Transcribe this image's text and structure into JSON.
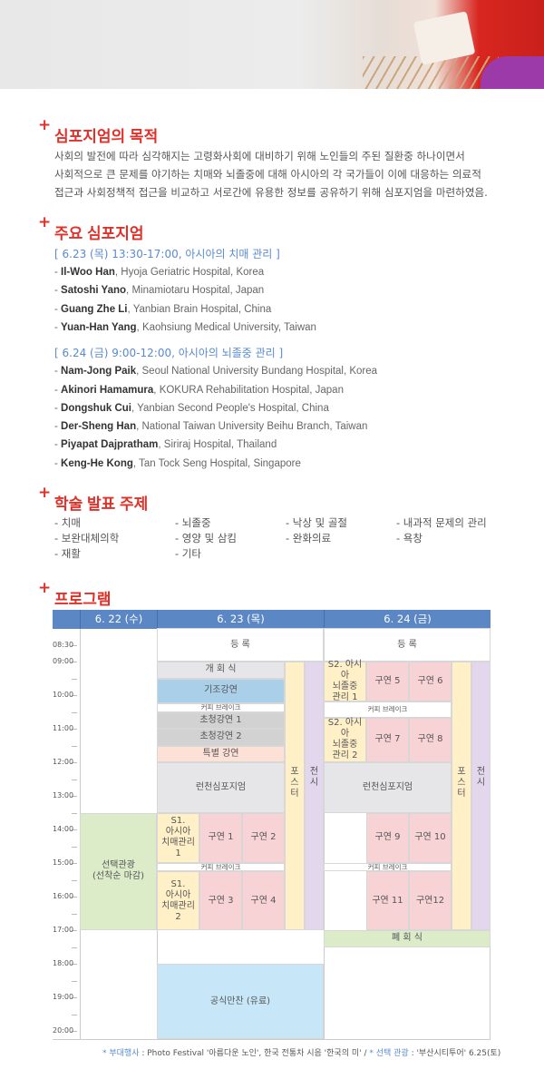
{
  "purpose": {
    "title": "심포지엄의 목적",
    "lines": [
      "사회의 발전에 따라 심각해지는 고령화사회에 대비하기 위해 노인들의 주된 질환중 하나이면서",
      "사회적으로 큰 문제를 야기하는 치매와 뇌졸중에 대해 아시아의 각 국가들이 이에 대응하는 의료적",
      "접근과 사회정책적 접근을 비교하고 서로간에 유용한 정보를 공유하기 위해 심포지엄을 마련하였음."
    ]
  },
  "symposia": {
    "title": "주요 심포지엄",
    "sessions": [
      {
        "heading": "[ 6.23 (목) 13:30-17:00, 아시아의 치매 관리 ]",
        "speakers": [
          {
            "name": "Il-Woo Han",
            "affil": "Hyoja Geriatric Hospital, Korea"
          },
          {
            "name": "Satoshi Yano",
            "affil": "Minamiotaru Hospital, Japan"
          },
          {
            "name": "Guang Zhe Li",
            "affil": "Yanbian Brain Hospital, China"
          },
          {
            "name": "Yuan-Han Yang",
            "affil": "Kaohsiung Medical University, Taiwan"
          }
        ]
      },
      {
        "heading": "[ 6.24 (금) 9:00-12:00, 아시아의 뇌졸중 관리 ]",
        "speakers": [
          {
            "name": "Nam-Jong Paik",
            "affil": "Seoul National University Bundang Hospital, Korea"
          },
          {
            "name": "Akinori Hamamura",
            "affil": "KOKURA Rehabilitation Hospital, Japan"
          },
          {
            "name": "Dongshuk Cui",
            "affil": "Yanbian Second People's Hospital, China"
          },
          {
            "name": "Der-Sheng Han",
            "affil": "National Taiwan University Beihu Branch, Taiwan"
          },
          {
            "name": "Piyapat Dajpratham",
            "affil": "Siriraj Hospital, Thailand"
          },
          {
            "name": "Keng-He Kong",
            "affil": "Tan Tock Seng Hospital, Singapore"
          }
        ]
      }
    ]
  },
  "topics": {
    "title": "학술 발표 주제",
    "items": [
      "- 치매",
      "- 뇌졸중",
      "- 낙상 및 골절",
      "- 내과적 문제의 관리",
      "- 보완대체의학",
      "- 영양 및 삼킴",
      "- 완화의료",
      "- 욕창",
      "- 재활",
      "- 기타"
    ]
  },
  "program": {
    "title": "프로그램",
    "days": [
      "6. 22 (수)",
      "6. 23 (목)",
      "6. 24 (금)"
    ],
    "times": [
      "08:30",
      "09:00",
      "10:00",
      "11:00",
      "12:00",
      "13:00",
      "14:00",
      "15:00",
      "16:00",
      "17:00",
      "18:00",
      "19:00",
      "20:00"
    ],
    "colors": {
      "header": "#5b87c5",
      "gray": "#e6e6e8",
      "blue": "#a9cfe9",
      "dark": "#d2d2d2",
      "salmon": "#fde0d6",
      "pink": "#f8d3d5",
      "yellow": "#fff0c8",
      "purple": "#e2d7ec",
      "green": "#dcecc9",
      "sky": "#c7e7f8",
      "white": "#ffffff"
    },
    "events": [
      {
        "day": 1,
        "lanes": [
          0,
          4
        ],
        "start": "08:00",
        "end": "09:00",
        "label": "등 록",
        "color": "white"
      },
      {
        "day": 1,
        "lanes": [
          0,
          2
        ],
        "start": "09:00",
        "end": "09:30",
        "label": "개 회 식",
        "color": "gray"
      },
      {
        "day": 1,
        "lanes": [
          0,
          2
        ],
        "start": "09:30",
        "end": "10:15",
        "label": "기조강연",
        "color": "blue"
      },
      {
        "day": 1,
        "lanes": [
          0,
          2
        ],
        "start": "10:15",
        "end": "10:30",
        "label": "커피 브레이크",
        "color": "white",
        "small": true
      },
      {
        "day": 1,
        "lanes": [
          0,
          2
        ],
        "start": "10:30",
        "end": "11:00",
        "label": "초청강연 1",
        "color": "dark"
      },
      {
        "day": 1,
        "lanes": [
          0,
          2
        ],
        "start": "11:00",
        "end": "11:30",
        "label": "초청강연 2",
        "color": "dark"
      },
      {
        "day": 1,
        "lanes": [
          0,
          2
        ],
        "start": "11:30",
        "end": "12:00",
        "label": "특별 강연",
        "color": "salmon"
      },
      {
        "day": 1,
        "lanes": [
          0,
          2
        ],
        "start": "12:00",
        "end": "13:30",
        "label": "런천심포지엄",
        "color": "gray"
      },
      {
        "day": 1,
        "lanes": [
          0,
          0
        ],
        "start": "13:30",
        "end": "15:00",
        "label": "S1.\n아시아\n치매관리\n1",
        "color": "yellow"
      },
      {
        "day": 1,
        "lanes": [
          1,
          1
        ],
        "start": "13:30",
        "end": "15:00",
        "label": "구연 1",
        "color": "pink"
      },
      {
        "day": 1,
        "lanes": [
          2,
          2
        ],
        "start": "13:30",
        "end": "15:00",
        "label": "구연 2",
        "color": "pink"
      },
      {
        "day": 1,
        "lanes": [
          0,
          2
        ],
        "start": "15:00",
        "end": "15:15",
        "label": "커피 브레이크",
        "color": "white",
        "small": true
      },
      {
        "day": 1,
        "lanes": [
          0,
          0
        ],
        "start": "15:15",
        "end": "17:00",
        "label": "S1.\n아시아\n치매관리\n2",
        "color": "yellow"
      },
      {
        "day": 1,
        "lanes": [
          1,
          1
        ],
        "start": "15:15",
        "end": "17:00",
        "label": "구연 3",
        "color": "pink"
      },
      {
        "day": 1,
        "lanes": [
          2,
          2
        ],
        "start": "15:15",
        "end": "17:00",
        "label": "구연 4",
        "color": "pink"
      },
      {
        "day": 1,
        "lanes": [
          3,
          3
        ],
        "start": "09:00",
        "end": "17:00",
        "label": "포\n스\n터",
        "color": "yellow"
      },
      {
        "day": 1,
        "lanes": [
          4,
          4
        ],
        "start": "09:00",
        "end": "17:00",
        "label": "전\n시",
        "color": "purple",
        "top": true
      },
      {
        "day": 1,
        "lanes": [
          0,
          4
        ],
        "start": "18:00",
        "end": "20:15",
        "label": "공식만찬 (유료)",
        "color": "sky"
      },
      {
        "day": 0,
        "lanes": [
          0,
          4
        ],
        "start": "13:30",
        "end": "17:00",
        "label": "선택관광\n(선착순 마감)",
        "color": "green"
      },
      {
        "day": 2,
        "lanes": [
          0,
          4
        ],
        "start": "08:00",
        "end": "09:00",
        "label": "등 록",
        "color": "white"
      },
      {
        "day": 2,
        "lanes": [
          0,
          0
        ],
        "start": "09:00",
        "end": "10:12",
        "label": "S2. 아시아\n뇌졸중\n관리 1",
        "color": "yellow"
      },
      {
        "day": 2,
        "lanes": [
          1,
          1
        ],
        "start": "09:00",
        "end": "10:12",
        "label": "구연 5",
        "color": "pink"
      },
      {
        "day": 2,
        "lanes": [
          2,
          2
        ],
        "start": "09:00",
        "end": "10:12",
        "label": "구연 6",
        "color": "pink"
      },
      {
        "day": 2,
        "lanes": [
          0,
          2
        ],
        "start": "10:12",
        "end": "10:40",
        "label": "커피 브레이크",
        "color": "white",
        "small": true
      },
      {
        "day": 2,
        "lanes": [
          0,
          0
        ],
        "start": "10:40",
        "end": "12:00",
        "label": "S2. 아시아\n뇌졸중\n관리 2",
        "color": "yellow"
      },
      {
        "day": 2,
        "lanes": [
          1,
          1
        ],
        "start": "10:40",
        "end": "12:00",
        "label": "구연 7",
        "color": "pink"
      },
      {
        "day": 2,
        "lanes": [
          2,
          2
        ],
        "start": "10:40",
        "end": "12:00",
        "label": "구연 8",
        "color": "pink"
      },
      {
        "day": 2,
        "lanes": [
          0,
          2
        ],
        "start": "12:00",
        "end": "13:30",
        "label": "런천심포지엄",
        "color": "gray"
      },
      {
        "day": 2,
        "lanes": [
          1,
          1
        ],
        "start": "13:30",
        "end": "15:00",
        "label": "구연 9",
        "color": "pink"
      },
      {
        "day": 2,
        "lanes": [
          2,
          2
        ],
        "start": "13:30",
        "end": "15:00",
        "label": "구연 10",
        "color": "pink"
      },
      {
        "day": 2,
        "lanes": [
          0,
          2
        ],
        "start": "15:00",
        "end": "15:15",
        "label": "커피 브레이크",
        "color": "white",
        "small": true
      },
      {
        "day": 2,
        "lanes": [
          1,
          1
        ],
        "start": "15:15",
        "end": "17:00",
        "label": "구연 11",
        "color": "pink"
      },
      {
        "day": 2,
        "lanes": [
          2,
          2
        ],
        "start": "15:15",
        "end": "17:00",
        "label": "구연12",
        "color": "pink"
      },
      {
        "day": 2,
        "lanes": [
          3,
          3
        ],
        "start": "09:00",
        "end": "17:00",
        "label": "포\n스\n터",
        "color": "yellow"
      },
      {
        "day": 2,
        "lanes": [
          4,
          4
        ],
        "start": "09:00",
        "end": "17:00",
        "label": "전\n시",
        "color": "purple",
        "top": true
      },
      {
        "day": 2,
        "lanes": [
          0,
          4
        ],
        "start": "17:00",
        "end": "17:30",
        "label": "폐 회 식",
        "color": "green"
      }
    ],
    "footnote": {
      "label1": "* 부대행사",
      "text1": " : Photo Festival '아름다운 노인', 한국 전통차 시음 '한국의 미' / ",
      "label2": "* 선택 관광",
      "text2": " : '부산시티투어' 6.25(토)"
    }
  }
}
